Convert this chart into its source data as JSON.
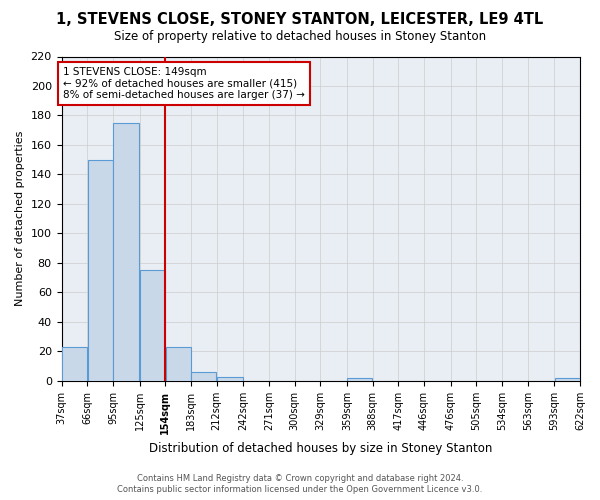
{
  "title": "1, STEVENS CLOSE, STONEY STANTON, LEICESTER, LE9 4TL",
  "subtitle": "Size of property relative to detached houses in Stoney Stanton",
  "xlabel": "Distribution of detached houses by size in Stoney Stanton",
  "ylabel": "Number of detached properties",
  "bin_edges": [
    37,
    66,
    95,
    125,
    154,
    183,
    212,
    242,
    271,
    300,
    329,
    359,
    388,
    417,
    446,
    476,
    505,
    534,
    563,
    593,
    622
  ],
  "bin_labels": [
    "37sqm",
    "66sqm",
    "95sqm",
    "125sqm",
    "154sqm",
    "183sqm",
    "212sqm",
    "242sqm",
    "271sqm",
    "300sqm",
    "329sqm",
    "359sqm",
    "388sqm",
    "417sqm",
    "446sqm",
    "476sqm",
    "505sqm",
    "534sqm",
    "563sqm",
    "593sqm",
    "622sqm"
  ],
  "bar_heights": [
    23,
    150,
    175,
    75,
    23,
    6,
    3,
    0,
    0,
    0,
    0,
    2,
    0,
    0,
    0,
    0,
    0,
    0,
    0,
    2
  ],
  "bar_color": "#c8d8e8",
  "bar_edgecolor": "#5b9bd5",
  "vline_x": 154,
  "vline_color": "#cc0000",
  "ylim": [
    0,
    220
  ],
  "yticks": [
    0,
    20,
    40,
    60,
    80,
    100,
    120,
    140,
    160,
    180,
    200,
    220
  ],
  "annotation_title": "1 STEVENS CLOSE: 149sqm",
  "annotation_line1": "← 92% of detached houses are smaller (415)",
  "annotation_line2": "8% of semi-detached houses are larger (37) →",
  "annotation_box_color": "#ffffff",
  "annotation_box_edgecolor": "#cc0000",
  "grid_color": "#cccccc",
  "background_color": "#e8eef4",
  "footer_line1": "Contains HM Land Registry data © Crown copyright and database right 2024.",
  "footer_line2": "Contains public sector information licensed under the Open Government Licence v3.0."
}
